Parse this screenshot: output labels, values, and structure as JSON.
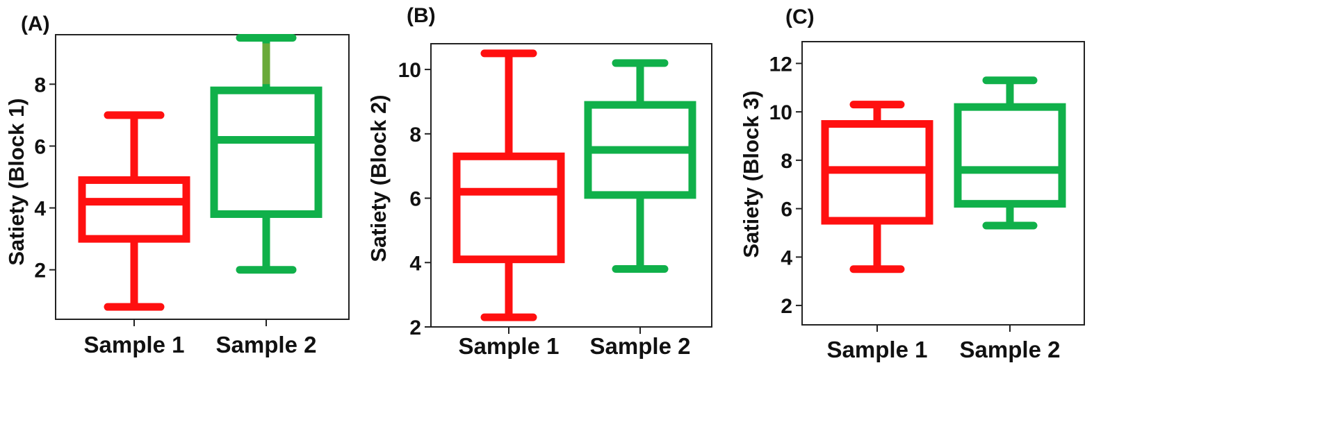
{
  "colors": {
    "sample1": "#ff1010",
    "sample2": "#10b04a",
    "sample2_whisker_accent": "#6aaa3a"
  },
  "chart_data": [
    {
      "type": "box",
      "panel_label": "(A)",
      "ylabel": "Satiety (Block 1)",
      "categories": [
        "Sample 1",
        "Sample 2"
      ],
      "ylim": [
        0.4,
        9.6
      ],
      "yticks": [
        2,
        4,
        6,
        8
      ],
      "grid": false,
      "series": [
        {
          "min": 0.8,
          "q1": 3.0,
          "median": 4.2,
          "q3": 4.9,
          "max": 7.0
        },
        {
          "min": 2.0,
          "q1": 3.8,
          "median": 6.2,
          "q3": 7.8,
          "max": 9.5
        }
      ]
    },
    {
      "type": "box",
      "panel_label": "(B)",
      "ylabel": "Satiety (Block 2)",
      "categories": [
        "Sample 1",
        "Sample 2"
      ],
      "ylim": [
        2.0,
        10.8
      ],
      "yticks": [
        2,
        4,
        6,
        8,
        10
      ],
      "grid": false,
      "series": [
        {
          "min": 2.3,
          "q1": 4.1,
          "median": 6.2,
          "q3": 7.3,
          "max": 10.5
        },
        {
          "min": 3.8,
          "q1": 6.1,
          "median": 7.5,
          "q3": 8.9,
          "max": 10.2
        }
      ]
    },
    {
      "type": "box",
      "panel_label": "(C)",
      "ylabel": "Satiety (Block 3)",
      "categories": [
        "Sample 1",
        "Sample 2"
      ],
      "ylim": [
        1.2,
        12.9
      ],
      "yticks": [
        2,
        4,
        6,
        8,
        10,
        12
      ],
      "grid": false,
      "series": [
        {
          "min": 3.5,
          "q1": 5.5,
          "median": 7.6,
          "q3": 9.5,
          "max": 10.3
        },
        {
          "min": 5.3,
          "q1": 6.2,
          "median": 7.6,
          "q3": 10.2,
          "max": 11.3
        }
      ]
    }
  ]
}
